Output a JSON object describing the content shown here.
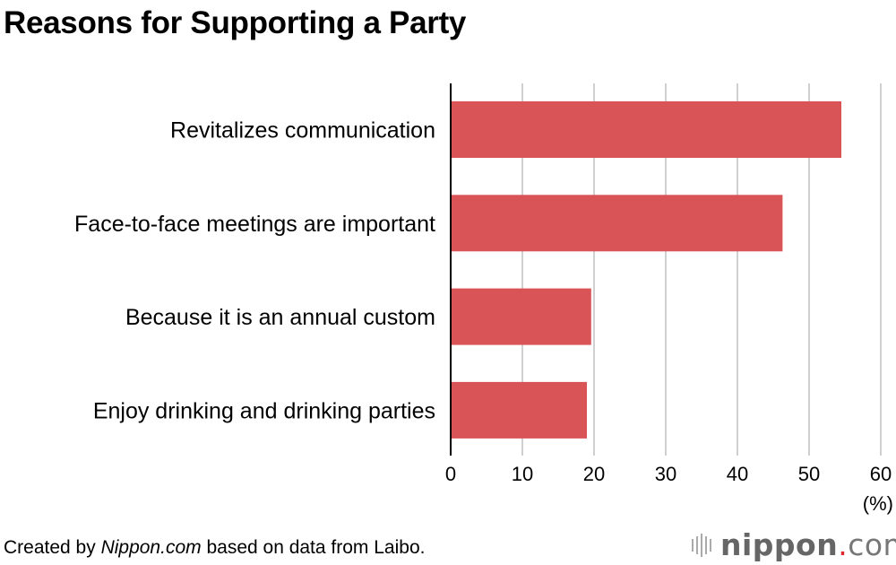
{
  "chart_data": {
    "type": "bar",
    "orientation": "horizontal",
    "title": "Reasons for Supporting a Party",
    "categories": [
      "Revitalizes communication",
      "Face-to-face meetings are important",
      "Because it is an annual custom",
      "Enjoy drinking and drinking parties"
    ],
    "values": [
      54.5,
      46.3,
      19.6,
      19.0
    ],
    "xlabel": "(%)",
    "ylabel": "",
    "xlim": [
      0,
      60
    ],
    "xticks": [
      0,
      10,
      20,
      30,
      40,
      50,
      60
    ],
    "grid": true,
    "bar_color": "#d95456"
  },
  "footer": {
    "prefix": "Created by ",
    "source_name": "Nippon.com",
    "suffix": " based on data from Laibo."
  },
  "logo": {
    "text": "nippon",
    "dot": ".",
    "com": "com"
  }
}
